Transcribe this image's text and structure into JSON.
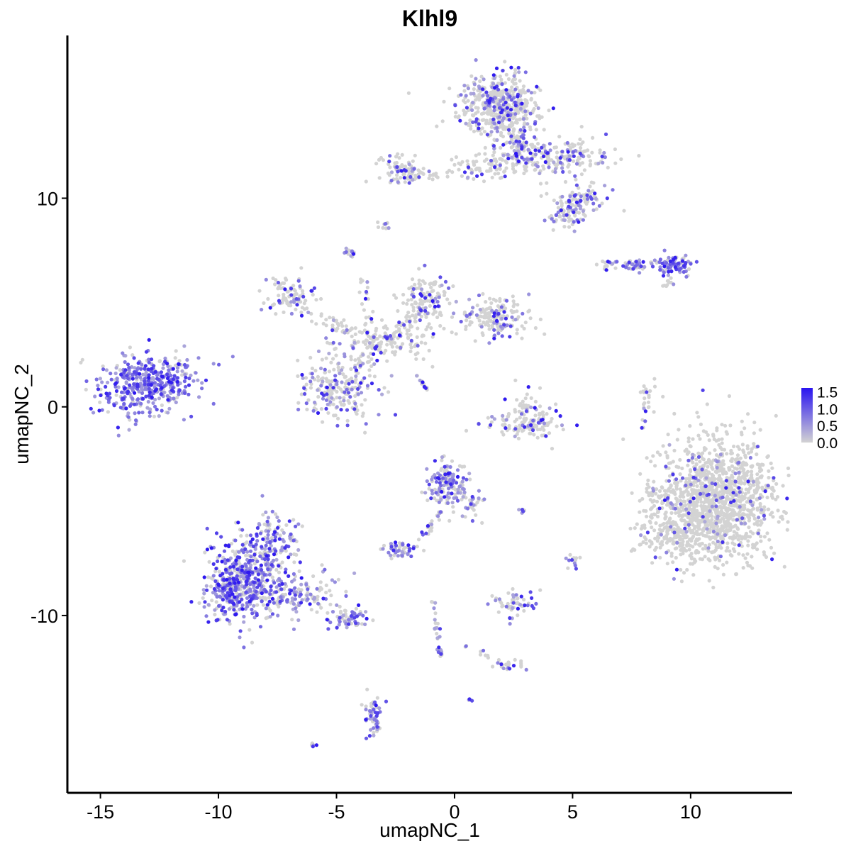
{
  "chart_data": {
    "type": "scatter",
    "title": "Klhl9",
    "xlabel": "umapNC_1",
    "ylabel": "umapNC_2",
    "xlim": [
      -16.4,
      14.3
    ],
    "ylim": [
      -18.5,
      17.8
    ],
    "x_ticks": [
      "-15",
      "-10",
      "-5",
      "0",
      "5",
      "10"
    ],
    "x_tick_values": [
      -15,
      -10,
      -5,
      0,
      5,
      10
    ],
    "y_ticks": [
      "10",
      "0",
      "-10"
    ],
    "y_tick_values": [
      10,
      0,
      -10
    ],
    "grid": false,
    "color_scale": {
      "low_color": "#d3d3d3",
      "high_color": "#2a14f0",
      "min": 0.0,
      "max": 1.62,
      "legend_labels": [
        "1.5",
        "1.0",
        "0.5",
        "0.0"
      ],
      "legend_values": [
        1.5,
        1.0,
        0.5,
        0.0
      ]
    },
    "legend_position": "right",
    "clusters": [
      {
        "cx": -13.2,
        "cy": 1.0,
        "sx": 1.0,
        "sy": 0.7,
        "n": 380,
        "expr_frac": 0.88
      },
      {
        "cx": -12.0,
        "cy": 1.7,
        "sx": 0.5,
        "sy": 0.5,
        "n": 40,
        "expr_frac": 0.7
      },
      {
        "cx": -8.8,
        "cy": -8.3,
        "sx": 0.8,
        "sy": 1.0,
        "n": 420,
        "expr_frac": 0.65
      },
      {
        "cx": -9.6,
        "cy": -8.8,
        "sx": 0.4,
        "sy": 0.6,
        "n": 120,
        "expr_frac": 0.75
      },
      {
        "cx": -7.8,
        "cy": -6.5,
        "sx": 0.6,
        "sy": 0.8,
        "n": 120,
        "expr_frac": 0.6
      },
      {
        "cx": -6.5,
        "cy": -9.0,
        "sx": 0.9,
        "sy": 0.5,
        "n": 120,
        "expr_frac": 0.5
      },
      {
        "cx": -4.5,
        "cy": -10.1,
        "sx": 0.5,
        "sy": 0.25,
        "n": 60,
        "expr_frac": 0.6
      },
      {
        "cx": 11.2,
        "cy": -4.5,
        "sx": 1.2,
        "sy": 1.4,
        "n": 1300,
        "expr_frac": 0.07
      },
      {
        "cx": 9.3,
        "cy": -6.2,
        "sx": 0.8,
        "sy": 0.6,
        "n": 150,
        "expr_frac": 0.05
      },
      {
        "cx": 8.8,
        "cy": -4.8,
        "sx": 0.4,
        "sy": 0.7,
        "n": 60,
        "expr_frac": 0.05
      },
      {
        "cx": 1.9,
        "cy": 14.5,
        "sx": 0.8,
        "sy": 0.7,
        "n": 480,
        "expr_frac": 0.22
      },
      {
        "cx": 2.6,
        "cy": 12.5,
        "sx": 0.6,
        "sy": 0.7,
        "n": 150,
        "expr_frac": 0.3
      },
      {
        "cx": 4.6,
        "cy": 11.9,
        "sx": 0.9,
        "sy": 0.4,
        "n": 160,
        "expr_frac": 0.3
      },
      {
        "cx": 5.2,
        "cy": 9.9,
        "sx": 0.6,
        "sy": 0.5,
        "n": 100,
        "expr_frac": 0.4
      },
      {
        "cx": 4.5,
        "cy": 9.2,
        "sx": 0.4,
        "sy": 0.3,
        "n": 40,
        "expr_frac": 0.4
      },
      {
        "cx": 1.0,
        "cy": 11.4,
        "sx": 0.5,
        "sy": 0.3,
        "n": 60,
        "expr_frac": 0.1
      },
      {
        "cx": -2.2,
        "cy": 11.4,
        "sx": 0.5,
        "sy": 0.35,
        "n": 90,
        "expr_frac": 0.25
      },
      {
        "cx": -0.7,
        "cy": 11.1,
        "sx": 0.3,
        "sy": 0.1,
        "n": 12,
        "expr_frac": 0.0
      },
      {
        "cx": 9.3,
        "cy": 6.8,
        "sx": 0.4,
        "sy": 0.22,
        "n": 90,
        "expr_frac": 0.8
      },
      {
        "cx": 7.4,
        "cy": 6.8,
        "sx": 0.7,
        "sy": 0.12,
        "n": 50,
        "expr_frac": 0.5
      },
      {
        "cx": -6.9,
        "cy": 5.3,
        "sx": 0.5,
        "sy": 0.5,
        "n": 90,
        "expr_frac": 0.2
      },
      {
        "cx": -4.9,
        "cy": 1.0,
        "sx": 0.75,
        "sy": 0.8,
        "n": 230,
        "expr_frac": 0.35
      },
      {
        "cx": -1.2,
        "cy": 5.1,
        "sx": 0.45,
        "sy": 0.7,
        "n": 120,
        "expr_frac": 0.25
      },
      {
        "cx": 1.6,
        "cy": 4.3,
        "sx": 0.8,
        "sy": 0.45,
        "n": 170,
        "expr_frac": 0.2
      },
      {
        "cx": -2.6,
        "cy": 3.2,
        "sx": 1.0,
        "sy": 0.5,
        "n": 110,
        "expr_frac": 0.1
      },
      {
        "cx": -0.3,
        "cy": -3.7,
        "sx": 0.4,
        "sy": 0.6,
        "n": 150,
        "expr_frac": 0.5
      },
      {
        "cx": 0.8,
        "cy": -4.8,
        "sx": 0.3,
        "sy": 0.4,
        "n": 30,
        "expr_frac": 0.4
      },
      {
        "cx": 3.2,
        "cy": -0.4,
        "sx": 0.5,
        "sy": 0.55,
        "n": 90,
        "expr_frac": 0.15
      },
      {
        "cx": 2.9,
        "cy": -0.8,
        "sx": 0.8,
        "sy": 0.3,
        "n": 60,
        "expr_frac": 0.2
      },
      {
        "cx": -2.4,
        "cy": -6.9,
        "sx": 0.35,
        "sy": 0.2,
        "n": 45,
        "expr_frac": 0.6
      },
      {
        "cx": 2.5,
        "cy": -9.4,
        "sx": 0.45,
        "sy": 0.3,
        "n": 55,
        "expr_frac": 0.4
      },
      {
        "cx": 2.2,
        "cy": -12.4,
        "sx": 0.35,
        "sy": 0.15,
        "n": 20,
        "expr_frac": 0.35
      },
      {
        "cx": -3.4,
        "cy": -14.8,
        "sx": 0.2,
        "sy": 0.5,
        "n": 55,
        "expr_frac": 0.6
      },
      {
        "cx": -6.0,
        "cy": -16.2,
        "sx": 0.1,
        "sy": 0.06,
        "n": 6,
        "expr_frac": 0.7
      },
      {
        "cx": -3.0,
        "cy": 8.7,
        "sx": 0.15,
        "sy": 0.1,
        "n": 10,
        "expr_frac": 0.3
      },
      {
        "cx": -4.4,
        "cy": 7.4,
        "sx": 0.12,
        "sy": 0.15,
        "n": 14,
        "expr_frac": 0.6
      },
      {
        "cx": 5.0,
        "cy": -7.4,
        "sx": 0.15,
        "sy": 0.2,
        "n": 14,
        "expr_frac": 0.5
      },
      {
        "cx": 8.2,
        "cy": 0.3,
        "sx": 0.2,
        "sy": 0.6,
        "n": 24,
        "expr_frac": 0.3
      },
      {
        "cx": 9.1,
        "cy": 5.9,
        "sx": 0.2,
        "sy": 0.1,
        "n": 10,
        "expr_frac": 0.2
      },
      {
        "cx": 0.6,
        "cy": -14.0,
        "sx": 0.08,
        "sy": 0.05,
        "n": 5,
        "expr_frac": 0.6
      },
      {
        "cx": 2.9,
        "cy": -4.9,
        "sx": 0.1,
        "sy": 0.08,
        "n": 6,
        "expr_frac": 0.8
      }
    ],
    "paths": [
      {
        "from": [
          -4.2,
          2.0
        ],
        "to": [
          -1.5,
          4.6
        ],
        "n": 60,
        "w": 0.35,
        "expr_frac": 0.3
      },
      {
        "from": [
          -6.8,
          4.8
        ],
        "to": [
          -3.5,
          3.2
        ],
        "n": 40,
        "w": 0.4,
        "expr_frac": 0.15
      },
      {
        "from": [
          -1.6,
          1.5
        ],
        "to": [
          -1.1,
          0.7
        ],
        "n": 14,
        "w": 0.05,
        "expr_frac": 0.5
      },
      {
        "from": [
          -3.5,
          3.2
        ],
        "to": [
          -3.9,
          6.0
        ],
        "n": 20,
        "w": 0.25,
        "expr_frac": 0.05
      },
      {
        "from": [
          -0.6,
          -12.0
        ],
        "to": [
          -0.9,
          -9.2
        ],
        "n": 30,
        "w": 0.12,
        "expr_frac": 0.5
      },
      {
        "from": [
          -1.3,
          -6.0
        ],
        "to": [
          -0.5,
          -5.0
        ],
        "n": 18,
        "w": 0.12,
        "expr_frac": 0.4
      },
      {
        "from": [
          0.4,
          -11.4
        ],
        "to": [
          2.2,
          -12.4
        ],
        "n": 14,
        "w": 0.15,
        "expr_frac": 0.3
      },
      {
        "from": [
          -1.8,
          -7.0
        ],
        "to": [
          -1.1,
          -5.8
        ],
        "n": 10,
        "w": 0.15,
        "expr_frac": 0.4
      }
    ]
  }
}
